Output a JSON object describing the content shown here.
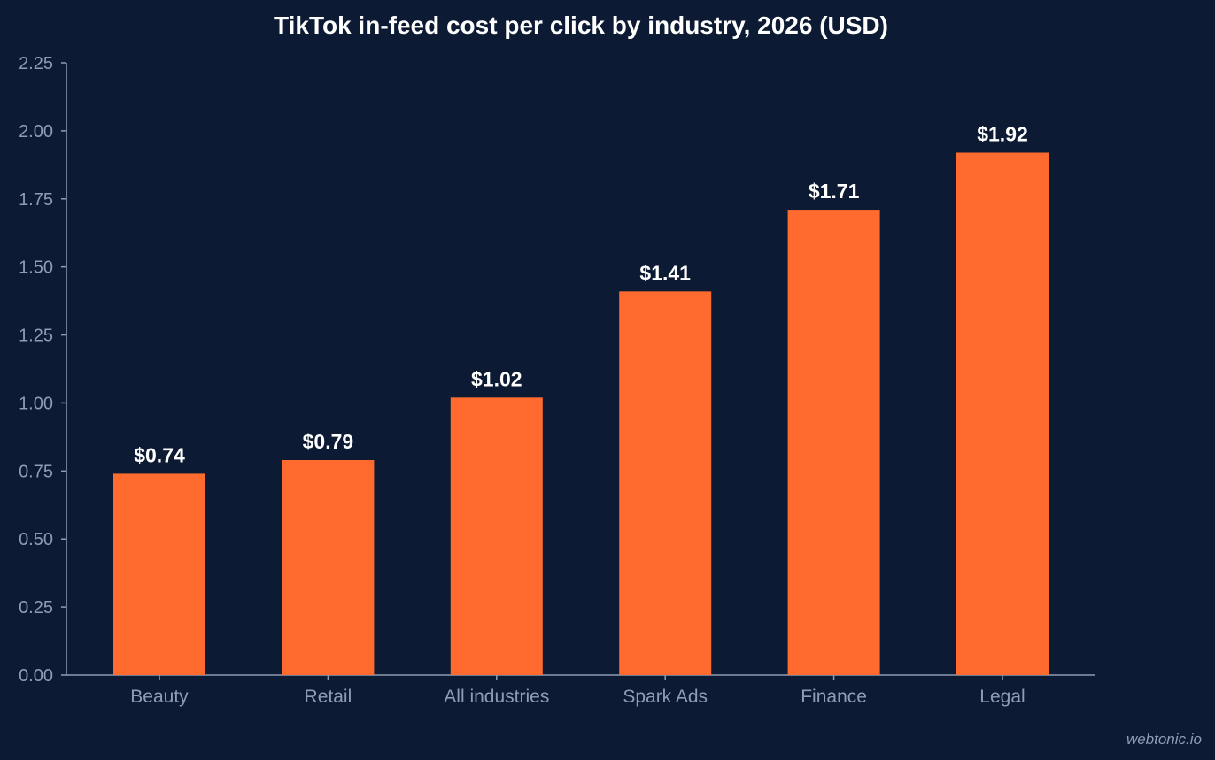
{
  "chart_data": {
    "type": "bar",
    "title": "TikTok in-feed cost per click by industry, 2026 (USD)",
    "xlabel": "",
    "ylabel": "",
    "categories": [
      "Beauty",
      "Retail",
      "All industries",
      "Spark Ads",
      "Finance",
      "Legal"
    ],
    "values": [
      0.74,
      0.79,
      1.02,
      1.41,
      1.71,
      1.92
    ],
    "value_labels": [
      "$0.74",
      "$0.79",
      "$1.02",
      "$1.41",
      "$1.71",
      "$1.92"
    ],
    "ylim": [
      0,
      2.25
    ],
    "yticks": [
      "0.00",
      "0.25",
      "0.50",
      "0.75",
      "1.00",
      "1.25",
      "1.50",
      "1.75",
      "2.00",
      "2.25"
    ],
    "grid": false,
    "legend": "none",
    "bar_color": "#ff6b2f",
    "background_color": "#0c1b33"
  },
  "watermark": "webtonic.io"
}
